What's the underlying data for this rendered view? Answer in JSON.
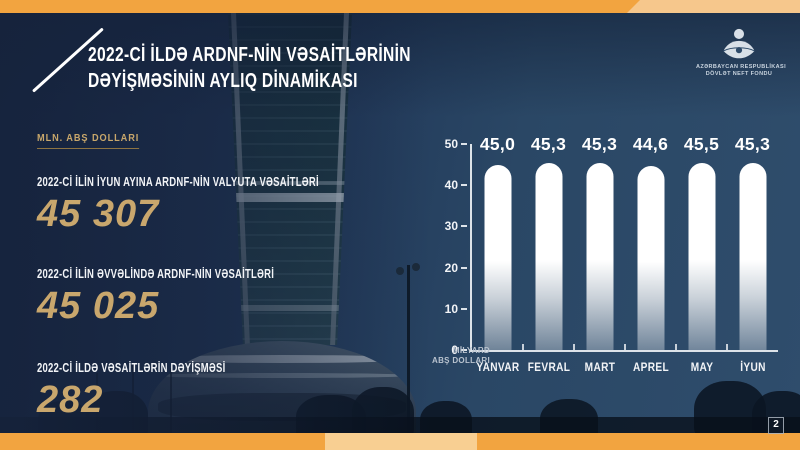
{
  "slide": {
    "title_line1": "2022-Cİ İLDƏ ARDNF-NİN VƏSAİTLƏRİNİN",
    "title_line2": "DƏYİŞMƏSİNİN AYLIQ DİNAMİKASI",
    "page_number": "2"
  },
  "logo": {
    "icon": "sofaz-flame-icon",
    "org_line1": "AZƏRBAYCAN RESPUBLİKASI",
    "org_line2": "DÖVLƏT NEFT FONDU"
  },
  "stats": {
    "unit_label": "MLN. ABŞ DOLLARI",
    "items": [
      {
        "label": "2022-Cİ İLİN İYUN AYINA ARDNF-NİN VALYUTA VƏSAİTLƏRİ",
        "value": "45 307"
      },
      {
        "label": "2022-Cİ İLİN ƏVVƏLİNDƏ ARDNF-NİN VƏSAİTLƏRİ",
        "value": "45 025"
      },
      {
        "label": "2022-Cİ İLDƏ VƏSAİTLƏRİN DƏYİŞMƏSİ",
        "value": "282"
      }
    ]
  },
  "chart_data": {
    "type": "bar",
    "title": "",
    "categories": [
      "YANVAR",
      "FEVRAL",
      "MART",
      "APREL",
      "MAY",
      "İYUN"
    ],
    "values": [
      45.0,
      45.3,
      45.3,
      44.6,
      45.5,
      45.3
    ],
    "value_labels": [
      "45,0",
      "45,3",
      "45,3",
      "44,6",
      "45,5",
      "45,3"
    ],
    "xlabel": "",
    "ylabel": "MİLYARD ABŞ DOLLARI",
    "ylabel_line1": "MİLYARD",
    "ylabel_line2": "ABŞ DOLLARI",
    "ylim": [
      0,
      50
    ],
    "yticks": [
      0,
      10,
      20,
      30,
      40,
      50
    ],
    "bar_color": "#ffffff",
    "grid": false,
    "legend_position": "none"
  },
  "colors": {
    "accent_orange": "#f2a440",
    "accent_orange_light": "#f6c78c",
    "gold": "#c9a76d",
    "background_navy": "#1a2c4e",
    "background_blue": "#2f4d6c",
    "bar_white": "#ffffff"
  }
}
